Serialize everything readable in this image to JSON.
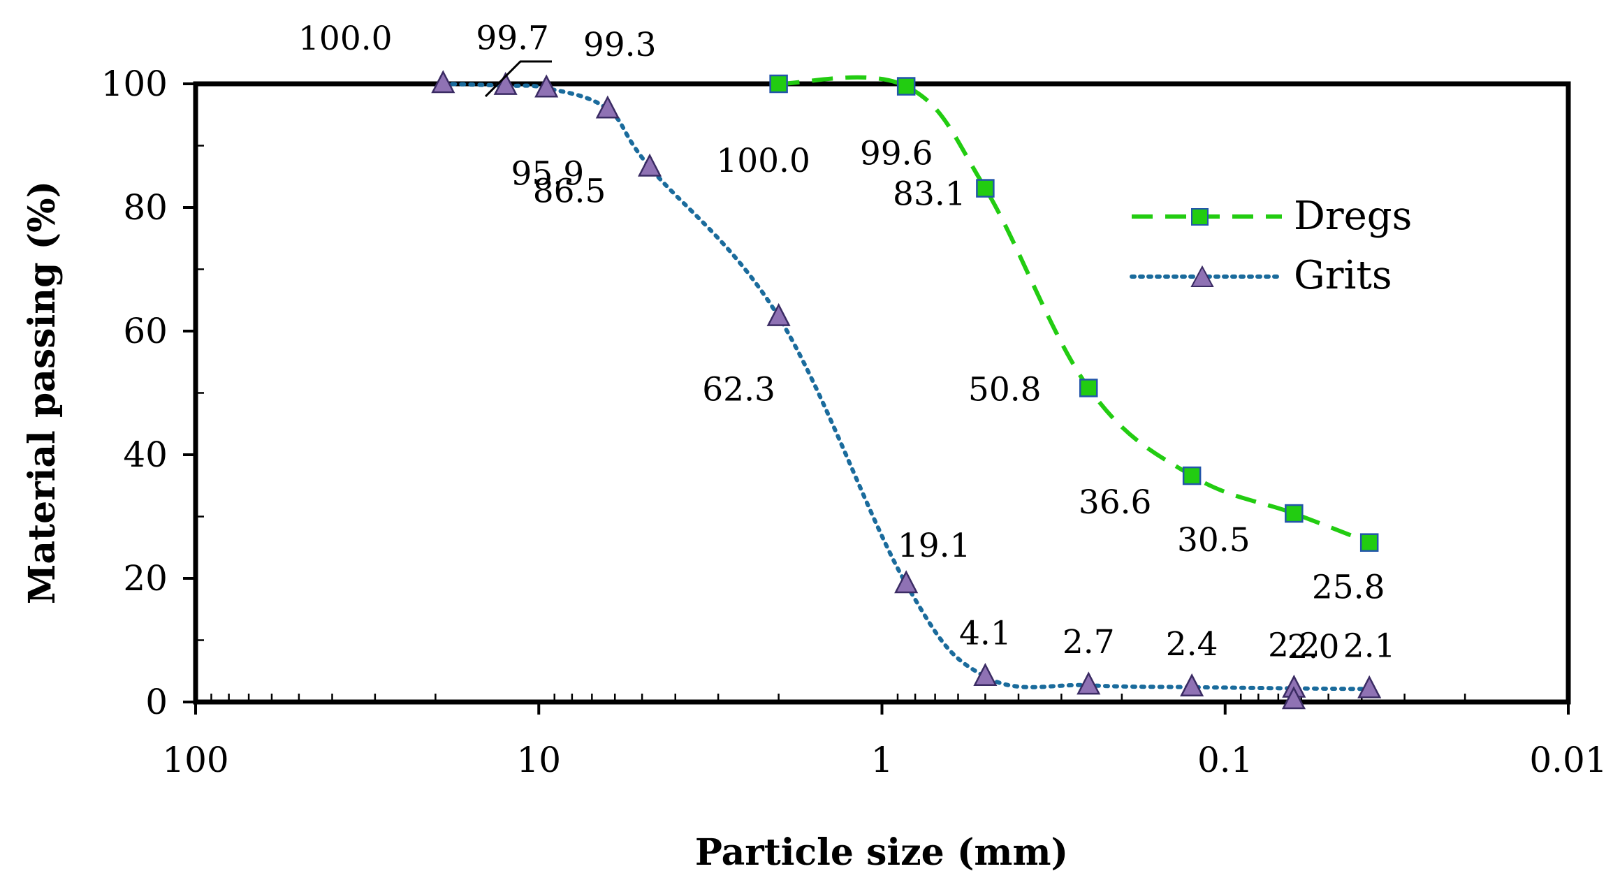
{
  "chart_data": {
    "type": "line",
    "title": "",
    "xlabel": "Particle size (mm)",
    "ylabel": "Material passing (%)",
    "x_scale": "log",
    "x_reversed": true,
    "xlim": [
      100,
      0.01
    ],
    "ylim": [
      0,
      100
    ],
    "x_ticks": [
      100,
      10,
      1,
      0.1,
      0.01
    ],
    "x_tick_labels": [
      "100",
      "10",
      "1",
      "0.1",
      "0.01"
    ],
    "y_ticks": [
      0,
      20,
      40,
      60,
      80,
      100
    ],
    "y_tick_labels": [
      "0",
      "20",
      "40",
      "60",
      "80",
      "100"
    ],
    "grid": false,
    "legend_position": "top-right",
    "series": [
      {
        "name": "Dregs",
        "color": "#22cc11",
        "line_style": "dashed",
        "marker": "square",
        "marker_color": "#22cc11",
        "marker_edge": "#2255aa",
        "x": [
          2.0,
          0.85,
          0.5,
          0.25,
          0.125,
          0.063,
          0.038
        ],
        "values": [
          100.0,
          99.6,
          83.1,
          50.8,
          36.6,
          30.5,
          25.8
        ],
        "labels": [
          "100.0",
          "99.6",
          "83.1",
          "50.8",
          "36.6",
          "30.5",
          "25.8"
        ]
      },
      {
        "name": "Grits",
        "color": "#1a6b9c",
        "line_style": "dotted",
        "marker": "triangle",
        "marker_color": "#8f72b4",
        "marker_edge": "#3a2b63",
        "x": [
          19.0,
          12.5,
          9.5,
          6.3,
          4.75,
          2.0,
          0.85,
          0.5,
          0.25,
          0.125,
          0.063,
          0.038
        ],
        "values": [
          100.0,
          99.7,
          99.3,
          95.9,
          86.5,
          62.3,
          19.1,
          4.1,
          2.7,
          2.4,
          2.2,
          2.1
        ],
        "labels": [
          "100.0",
          "99.7",
          "99.3",
          "95.9",
          "86.5",
          "62.3",
          "19.1",
          "4.1",
          "2.7",
          "2.4",
          "2.2",
          "2.1"
        ]
      }
    ],
    "extra_labels": [
      "2.0"
    ]
  }
}
